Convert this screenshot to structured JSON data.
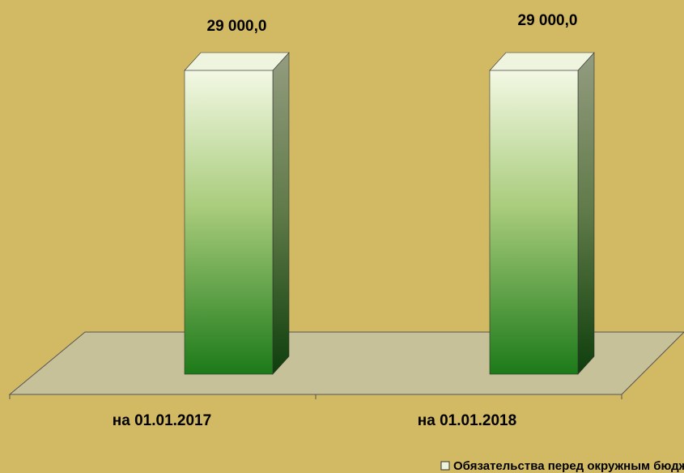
{
  "chart_data": {
    "type": "bar",
    "categories": [
      "на 01.01.2017",
      "на 01.01.2018"
    ],
    "series": [
      {
        "name": "Обязательства перед окружным бюджетом",
        "color": "#2a8a22",
        "values": [
          29000,
          29000
        ],
        "value_labels": [
          "29 000,0",
          "29 000,0"
        ]
      }
    ]
  }
}
